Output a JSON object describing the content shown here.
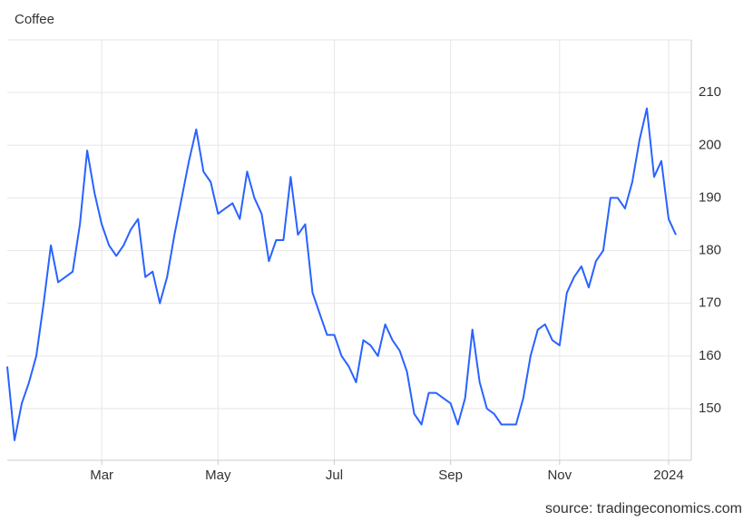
{
  "chart_data": {
    "type": "line",
    "title": "Coffee",
    "source": "source: tradingeconomics.com",
    "categories": [
      null,
      null,
      null,
      null,
      null,
      null,
      null,
      null,
      null,
      null,
      null,
      null,
      null,
      "Mar",
      null,
      null,
      null,
      null,
      null,
      null,
      null,
      null,
      null,
      null,
      null,
      null,
      null,
      null,
      null,
      "May",
      null,
      null,
      null,
      null,
      null,
      null,
      null,
      null,
      null,
      null,
      null,
      null,
      null,
      null,
      null,
      "Jul",
      null,
      null,
      null,
      null,
      null,
      null,
      null,
      null,
      null,
      null,
      null,
      null,
      null,
      null,
      null,
      "Sep",
      null,
      null,
      null,
      null,
      null,
      null,
      null,
      null,
      null,
      null,
      null,
      null,
      null,
      null,
      "Nov",
      null,
      null,
      null,
      null,
      null,
      null,
      null,
      null,
      null,
      null,
      null,
      null,
      null,
      null,
      "2024",
      null
    ],
    "values": [
      158,
      144,
      151,
      155,
      160,
      170,
      181,
      174,
      175,
      176,
      185,
      199,
      191,
      185,
      181,
      179,
      181,
      184,
      186,
      175,
      176,
      170,
      175,
      183,
      190,
      197,
      203,
      195,
      193,
      187,
      188,
      189,
      186,
      195,
      190,
      187,
      178,
      182,
      182,
      194,
      183,
      185,
      172,
      168,
      164,
      164,
      160,
      158,
      155,
      163,
      162,
      160,
      166,
      163,
      161,
      157,
      149,
      147,
      153,
      153,
      152,
      151,
      147,
      152,
      165,
      155,
      150,
      149,
      147,
      147,
      147,
      152,
      160,
      165,
      166,
      163,
      162,
      172,
      175,
      177,
      173,
      178,
      180,
      190,
      190,
      188,
      193,
      201,
      207,
      194,
      197,
      186,
      183
    ],
    "color": "#2962ff",
    "ylim": [
      140.2,
      220
    ],
    "yticks": [
      150,
      160,
      170,
      180,
      190,
      200,
      210
    ],
    "grid": true
  }
}
